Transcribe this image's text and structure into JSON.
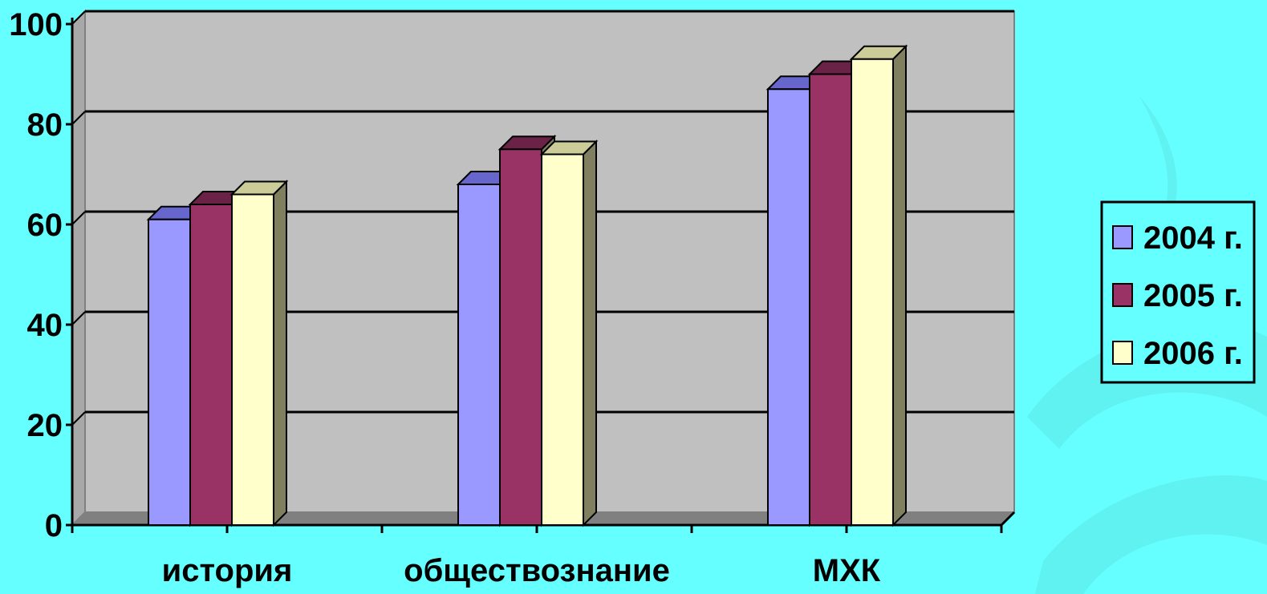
{
  "chart_data": {
    "type": "bar",
    "categories": [
      "история",
      "обществознание",
      "МХК"
    ],
    "series": [
      {
        "name": "2004 г.",
        "values": [
          61,
          68,
          87
        ],
        "color": "#9999ff",
        "shade": "#6666cc"
      },
      {
        "name": "2005 г.",
        "values": [
          64,
          75,
          90
        ],
        "color": "#993366",
        "shade": "#6b2247"
      },
      {
        "name": "2006 г.",
        "values": [
          66,
          74,
          93
        ],
        "color": "#ffffcc",
        "shade": "#cccc99"
      }
    ],
    "ylim": [
      0,
      100
    ],
    "yticks": [
      "0",
      "20",
      "40",
      "60",
      "80",
      "100"
    ],
    "grid": true,
    "legend": "right",
    "colors": {
      "background": "#66ffff",
      "plot_wall": "#c0c0c0",
      "floor": "#808080",
      "side_dark": "#808060"
    }
  }
}
